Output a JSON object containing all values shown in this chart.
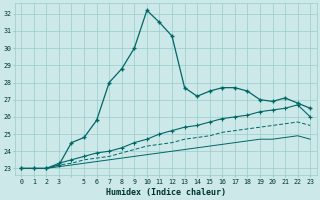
{
  "title": "",
  "xlabel": "Humidex (Indice chaleur)",
  "bg_color": "#cce8e8",
  "grid_color": "#99cccc",
  "line_color": "#006666",
  "xlim": [
    -0.5,
    23.5
  ],
  "ylim": [
    22.6,
    32.6
  ],
  "yticks": [
    23,
    24,
    25,
    26,
    27,
    28,
    29,
    30,
    31,
    32
  ],
  "main_line": [
    23.0,
    23.0,
    23.0,
    23.2,
    24.5,
    24.8,
    25.8,
    28.0,
    28.8,
    30.0,
    32.2,
    31.5,
    30.7,
    27.7,
    27.2,
    27.5,
    27.7,
    27.7,
    27.5,
    27.0,
    26.9,
    27.1,
    26.8,
    26.5
  ],
  "line2": [
    23.0,
    23.0,
    23.0,
    23.3,
    23.5,
    23.7,
    23.9,
    24.0,
    24.2,
    24.5,
    24.7,
    25.0,
    25.2,
    25.4,
    25.5,
    25.7,
    25.9,
    26.0,
    26.1,
    26.3,
    26.4,
    26.5,
    26.7,
    26.0
  ],
  "line3": [
    23.0,
    23.0,
    23.0,
    23.2,
    23.3,
    23.5,
    23.6,
    23.7,
    23.9,
    24.1,
    24.3,
    24.4,
    24.5,
    24.7,
    24.8,
    24.9,
    25.1,
    25.2,
    25.3,
    25.4,
    25.5,
    25.6,
    25.7,
    25.5
  ],
  "line4": [
    23.0,
    23.0,
    23.0,
    23.1,
    23.2,
    23.3,
    23.4,
    23.5,
    23.6,
    23.7,
    23.8,
    23.9,
    24.0,
    24.1,
    24.2,
    24.3,
    24.4,
    24.5,
    24.6,
    24.7,
    24.7,
    24.8,
    24.9,
    24.7
  ]
}
